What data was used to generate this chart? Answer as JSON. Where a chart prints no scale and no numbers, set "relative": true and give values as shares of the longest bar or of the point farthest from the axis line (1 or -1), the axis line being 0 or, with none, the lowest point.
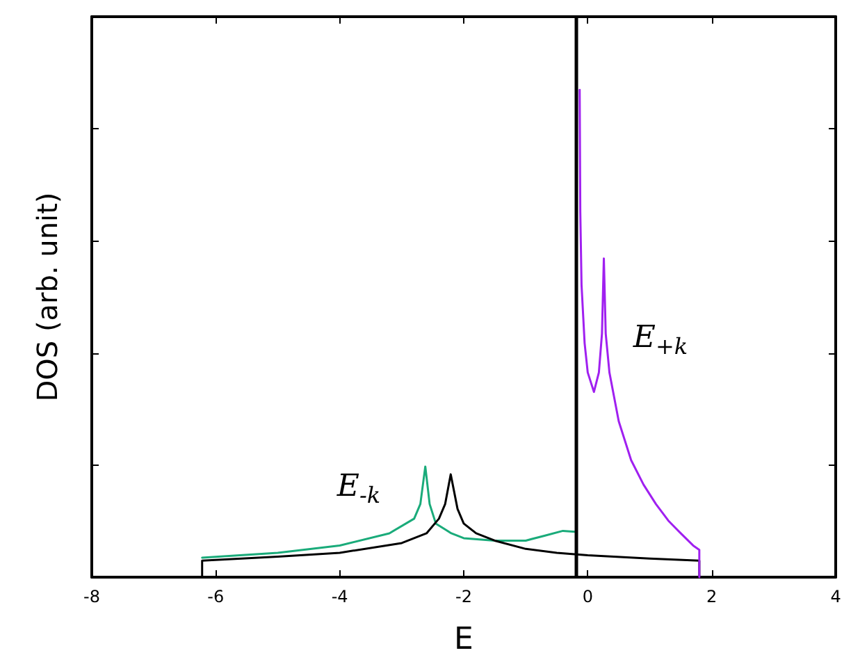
{
  "chart_data": {
    "type": "line",
    "xlabel": "E",
    "ylabel": "DOS (arb. unit)",
    "relative": true,
    "xlim": [
      -8,
      4
    ],
    "xticks": [
      -8,
      -6,
      -4,
      -2,
      0,
      2,
      4
    ],
    "tick_labels": "x",
    "grid": false,
    "marker": "none",
    "line_style": "solid",
    "series": [
      {
        "color": "#1aab7a",
        "x": [
          -6.22,
          -5,
          -4,
          -3.2,
          -2.8,
          -2.7,
          -2.62,
          -2.55,
          -2.45,
          -2.2,
          -2,
          -1.5,
          -1,
          -0.7,
          -0.4,
          -0.2
        ],
        "values": [
          0.04,
          0.05,
          0.065,
          0.09,
          0.12,
          0.15,
          0.227,
          0.15,
          0.11,
          0.09,
          0.08,
          0.075,
          0.075,
          0.085,
          0.095,
          0.093
        ]
      },
      {
        "color": "#000000",
        "x": [
          -6.22,
          -6.22,
          -5,
          -4,
          -3,
          -2.6,
          -2.4,
          -2.3,
          -2.21,
          -2.1,
          -2,
          -1.8,
          -1.5,
          -1,
          -0.5,
          0,
          1,
          1.8,
          1.8
        ],
        "values": [
          0,
          0.034,
          0.042,
          0.05,
          0.07,
          0.09,
          0.12,
          0.15,
          0.211,
          0.14,
          0.11,
          0.09,
          0.075,
          0.058,
          0.05,
          0.045,
          0.038,
          0.034,
          0
        ]
      },
      {
        "color": "#a020f0",
        "x": [
          -0.13,
          -0.12,
          -0.1,
          -0.05,
          0,
          0.1,
          0.18,
          0.23,
          0.26,
          0.29,
          0.35,
          0.5,
          0.7,
          0.9,
          1.1,
          1.3,
          1.5,
          1.7,
          1.8,
          1.8
        ],
        "values": [
          1,
          0.75,
          0.6,
          0.48,
          0.42,
          0.38,
          0.42,
          0.5,
          0.654,
          0.5,
          0.42,
          0.32,
          0.24,
          0.19,
          0.15,
          0.116,
          0.09,
          0.065,
          0.056,
          0
        ]
      }
    ],
    "ref_lines": [
      {
        "axis": "x",
        "value": -0.2,
        "color": "#000000",
        "line_style": "solid"
      }
    ],
    "annotations": [
      "E$_{-k}$",
      "E$_{+k}$"
    ]
  }
}
